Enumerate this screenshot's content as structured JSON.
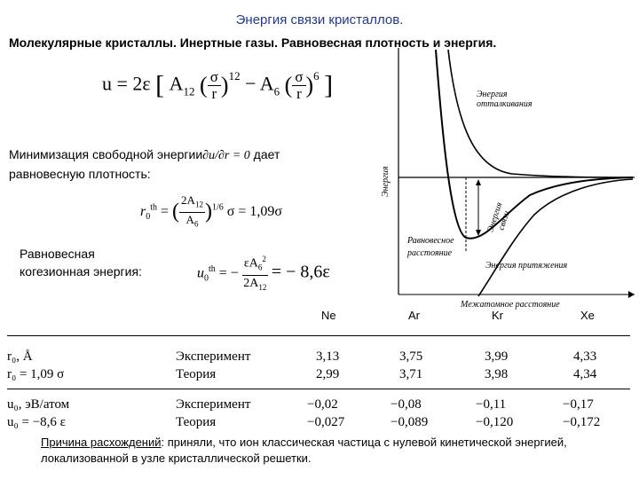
{
  "header": {
    "title": "Энергия связи кристаллов.",
    "subtitle": "Молекулярные кристаллы. Инертные газы. Равновесная плотность и энергия."
  },
  "formula_main": {
    "lhs": "u = 2ε",
    "A12": "A",
    "sub12": "12",
    "sigma": "σ",
    "r": "r",
    "pow12": "12",
    "minus": "− A",
    "sub6": "6",
    "pow6": "6"
  },
  "minimization": {
    "line1_a": "Минимизация свободной энергии",
    "line1_b": "∂u/∂r = 0",
    "line1_c": "дает",
    "line2": "равновесную плотность:",
    "r0_lhs": "r",
    "r0_sup": "th",
    "r0_sub": "0",
    "r0_num": "2A",
    "r0_num_sub": "12",
    "r0_den": "A",
    "r0_den_sub": "6",
    "r0_pow": "1/6",
    "r0_rhs": "σ = 1,09σ"
  },
  "cohesive": {
    "line1": "Равновесная",
    "line2": "когезионная энергия:",
    "u0_lhs": "u",
    "u0_sup": "th",
    "u0_sub": "0",
    "u0_num": "εA",
    "u0_num_sup": "2",
    "u0_num_sub": "6",
    "u0_den": "2A",
    "u0_den_sub": "12",
    "u0_rhs": "= − 8,6ε"
  },
  "graph": {
    "y_axis_label": "Энергия",
    "repulsion_label_1": "Энергия",
    "repulsion_label_2": "отталкивания",
    "binding_label_1": "Энергия",
    "binding_label_2": "связи",
    "equilibrium_label_1": "Равновесное",
    "equilibrium_label_2": "расстояние",
    "attraction_label": "Энергия притяжения",
    "x_axis_label": "Межатомное расстояние"
  },
  "table": {
    "columns": [
      "Ne",
      "Ar",
      "Kr",
      "Xe"
    ],
    "rows": [
      {
        "param": "r₀, Å",
        "type": "Эксперимент",
        "values": [
          "3,13",
          "3,75",
          "3,99",
          "4,33"
        ]
      },
      {
        "param": "r₀ = 1,09 σ",
        "type": "Теория",
        "values": [
          "2,99",
          "3,71",
          "3,98",
          "4,34"
        ]
      },
      {
        "param": "u₀, эВ/атом",
        "type": "Эксперимент",
        "values": [
          "−0,02",
          "−0,08",
          "−0,11",
          "−0,17"
        ]
      },
      {
        "param": "u₀ = −8,6 ε",
        "type": "Теория",
        "values": [
          "−0,027",
          "−0,089",
          "−0,120",
          "−0,172"
        ]
      }
    ]
  },
  "note": {
    "lead": "Причина расхождений",
    "rest": ": приняли, что  ион классическая частица с нулевой кинетической энергией, локализованной в узле кристаллической решетки."
  },
  "colors": {
    "title": "#1f3a93",
    "text": "#000000",
    "background": "#ffffff"
  }
}
